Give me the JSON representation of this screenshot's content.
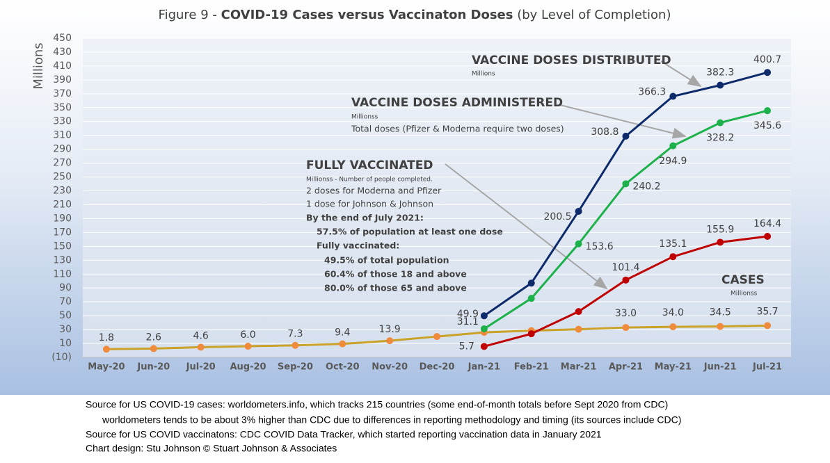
{
  "chart_data": {
    "type": "line",
    "title_prefix": "Figure 9 - ",
    "title_bold": "COVID-19 Cases versus Vaccinaton Doses",
    "title_suffix": "(by Level of Completion)",
    "y_label": "Millions",
    "categories": [
      "May-20",
      "Jun-20",
      "Jul-20",
      "Aug-20",
      "Sep-20",
      "Oct-20",
      "Nov-20",
      "Dec-20",
      "Jan-21",
      "Feb-21",
      "Mar-21",
      "Apr-21",
      "May-21",
      "Jun-21",
      "Jul-21"
    ],
    "ylim": [
      -10,
      450
    ],
    "yticks": [
      {
        "value": -10,
        "label": "(10)"
      },
      10,
      30,
      50,
      70,
      90,
      110,
      130,
      150,
      170,
      190,
      210,
      230,
      250,
      270,
      290,
      310,
      330,
      350,
      370,
      390,
      410,
      430,
      450
    ],
    "grid": true,
    "series": [
      {
        "name": "CASES",
        "color": "#c9a227",
        "marker_color": "#f08a3c",
        "values": [
          1.8,
          2.6,
          4.6,
          6.0,
          7.3,
          9.4,
          13.9,
          20,
          26,
          28.5,
          30.5,
          33.0,
          34.0,
          34.5,
          35.7
        ],
        "value_labels": [
          "1.8",
          "2.6",
          "4.6",
          "6.0",
          "7.3",
          "9.4",
          "13.9",
          null,
          null,
          null,
          null,
          "33.0",
          "34.0",
          "34.5",
          "35.7"
        ]
      },
      {
        "name": "VACCINE DOSES DISTRIBUTED",
        "color": "#0d2a6b",
        "marker_color": "#0d2a6b",
        "values": [
          null,
          null,
          null,
          null,
          null,
          null,
          null,
          null,
          49.9,
          97,
          200.5,
          308.8,
          366.3,
          382.3,
          400.7
        ],
        "value_labels": [
          null,
          null,
          null,
          null,
          null,
          null,
          null,
          null,
          "49.9",
          null,
          "200.5",
          "308.8",
          "366.3",
          "382.3",
          "400.7"
        ]
      },
      {
        "name": "VACCINE DOSES ADMINISTERED",
        "color": "#1db14b",
        "marker_color": "#1db14b",
        "values": [
          null,
          null,
          null,
          null,
          null,
          null,
          null,
          null,
          31.1,
          75,
          153.6,
          240.2,
          294.9,
          328.2,
          345.6
        ],
        "value_labels": [
          null,
          null,
          null,
          null,
          null,
          null,
          null,
          null,
          "31.1",
          null,
          "153.6",
          "240.2",
          "294.9",
          "328.2",
          "345.6"
        ]
      },
      {
        "name": "FULLY VACCINATED",
        "color": "#c00000",
        "marker_color": "#c00000",
        "values": [
          null,
          null,
          null,
          null,
          null,
          null,
          null,
          null,
          5.7,
          24,
          56,
          101.4,
          135.1,
          155.9,
          164.4
        ],
        "value_labels": [
          null,
          null,
          null,
          null,
          null,
          null,
          null,
          null,
          "5.7",
          null,
          null,
          "101.4",
          "135.1",
          "155.9",
          "164.4"
        ]
      }
    ],
    "annotations": {
      "distributed_unit": "Millions",
      "administered_unit": "Millionss",
      "administered_note": "Total doses (Pfizer & Moderna require two doses)",
      "fully_unit": "Millionss - Number of people completed.",
      "fully_notes": [
        "2 doses for Moderna and Pfizer",
        "1 dose for Johnson & Johnson",
        "By the end of July 2021:",
        "57.5% of population at least one dose",
        "Fully vaccinated:",
        "49.5% of total population",
        "60.4% of those 18 and above",
        "80.0% of those 65 and above"
      ],
      "cases_unit": "Millionss"
    },
    "footer": [
      "Source for US COVID-19 cases: worldometers.info, which tracks 215 countries  (some end-of-month totals before Sept 2020 from CDC)",
      "worldometers tends to be about 3% higher than CDC due to differences in reporting methodology and timing (its sources include CDC)",
      "Source for US COVID vaccinatons: CDC COVID Data Tracker, which started reporting vaccination data in January 2021",
      "Chart design: Stu Johnson © Stuart Johnson & Associates"
    ]
  }
}
